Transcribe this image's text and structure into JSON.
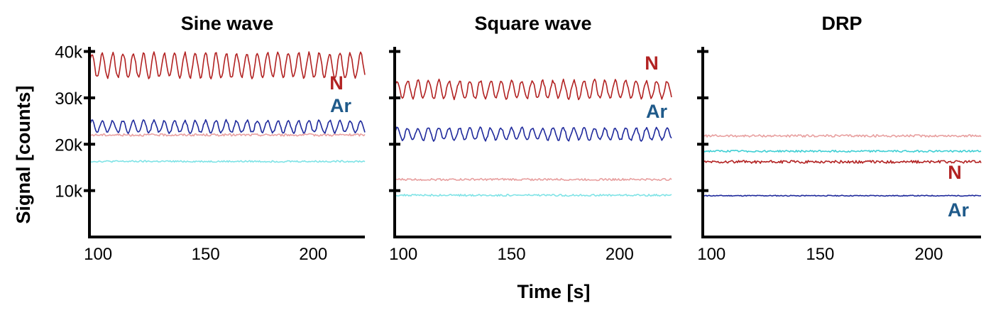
{
  "figure": {
    "ylabel": "Signal [counts]",
    "xlabel": "Time [s]"
  },
  "chart_data": [
    {
      "type": "line",
      "title": "Sine wave",
      "xlim": [
        96,
        224
      ],
      "ylim": [
        0,
        41000
      ],
      "xticks": [
        100,
        150,
        200
      ],
      "xtick_labels": [
        "100",
        "150",
        "200"
      ],
      "yticks": [
        10000,
        20000,
        30000,
        40000
      ],
      "ytick_labels": [
        "10k",
        "20k",
        "30k",
        "40k"
      ],
      "series": [
        {
          "name": "N",
          "color": "#b22222",
          "mean": 37000,
          "amplitude": 2600,
          "period_s": 4.8,
          "noise": 350
        },
        {
          "name": "Ar",
          "color": "#1f2a9c",
          "mean": 23800,
          "amplitude": 1300,
          "period_s": 4.8,
          "noise": 250
        },
        {
          "color": "#e8a0a0",
          "mean": 22000,
          "amplitude": 0,
          "period_s": 0,
          "noise": 250
        },
        {
          "color": "#7fe3e6",
          "mean": 16300,
          "amplitude": 0,
          "period_s": 0,
          "noise": 180
        }
      ],
      "annotations": [
        {
          "text": "N",
          "color": "#b22222"
        },
        {
          "text": "Ar",
          "color": "#1f5a8a"
        }
      ]
    },
    {
      "type": "line",
      "title": "Square wave",
      "xlim": [
        96,
        224
      ],
      "ylim": [
        0,
        41000
      ],
      "xticks": [
        100,
        150,
        200
      ],
      "xtick_labels": [
        "100",
        "150",
        "200"
      ],
      "yticks": [
        10000,
        20000,
        30000,
        40000
      ],
      "ytick_labels": [
        "",
        "",
        "",
        ""
      ],
      "series": [
        {
          "name": "N",
          "color": "#b22222",
          "mean": 31800,
          "amplitude": 1900,
          "period_s": 4.8,
          "noise": 350
        },
        {
          "name": "Ar",
          "color": "#1f2a9c",
          "mean": 22200,
          "amplitude": 1300,
          "period_s": 4.8,
          "noise": 250
        },
        {
          "color": "#e8a0a0",
          "mean": 12400,
          "amplitude": 0,
          "period_s": 0,
          "noise": 220
        },
        {
          "color": "#7fe3e6",
          "mean": 9000,
          "amplitude": 0,
          "period_s": 0,
          "noise": 200
        }
      ],
      "annotations": [
        {
          "text": "N",
          "color": "#b22222"
        },
        {
          "text": "Ar",
          "color": "#1f5a8a"
        }
      ]
    },
    {
      "type": "line",
      "title": "DRP",
      "xlim": [
        96,
        224
      ],
      "ylim": [
        0,
        41000
      ],
      "xticks": [
        100,
        150,
        200
      ],
      "xtick_labels": [
        "100",
        "150",
        "200"
      ],
      "yticks": [
        10000,
        20000,
        30000,
        40000
      ],
      "ytick_labels": [
        "",
        "",
        "",
        ""
      ],
      "series": [
        {
          "color": "#e8a0a0",
          "mean": 21800,
          "amplitude": 0,
          "period_s": 0,
          "noise": 250
        },
        {
          "color": "#3fcfd4",
          "mean": 18500,
          "amplitude": 0,
          "period_s": 0,
          "noise": 200
        },
        {
          "name": "N",
          "color": "#b22222",
          "mean": 16200,
          "amplitude": 0,
          "period_s": 0,
          "noise": 300
        },
        {
          "name": "Ar",
          "color": "#1f2a9c",
          "mean": 8900,
          "amplitude": 0,
          "period_s": 0,
          "noise": 100
        }
      ],
      "annotations": [
        {
          "text": "N",
          "color": "#b22222"
        },
        {
          "text": "Ar",
          "color": "#1f5a8a"
        }
      ]
    }
  ]
}
